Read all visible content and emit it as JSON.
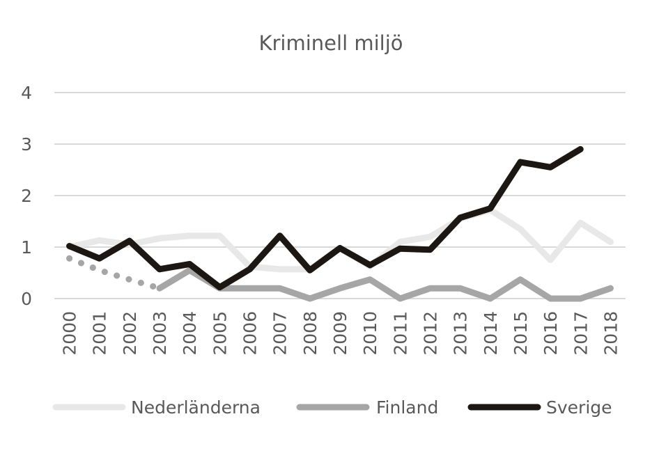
{
  "chart_data": {
    "type": "line",
    "title": "Kriminell miljö",
    "xlabel": "",
    "ylabel": "",
    "ylim": [
      0,
      4
    ],
    "yticks": [
      "0",
      "1",
      "2",
      "3",
      "4"
    ],
    "categories": [
      "2000",
      "2001",
      "2002",
      "2003",
      "2004",
      "2005",
      "2006",
      "2007",
      "2008",
      "2009",
      "2010",
      "2011",
      "2012",
      "2013",
      "2014",
      "2015",
      "2016",
      "2017",
      "2018"
    ],
    "grid": true,
    "legend_position": "bottom",
    "series": [
      {
        "name": "Nederländerna",
        "color": "#e8e8e8",
        "values": [
          1.0,
          1.13,
          1.05,
          1.17,
          1.22,
          1.22,
          0.62,
          0.57,
          0.57,
          0.98,
          0.63,
          1.1,
          1.2,
          1.55,
          1.72,
          1.35,
          0.75,
          1.47,
          1.1
        ]
      },
      {
        "name": "Finland",
        "color": "#a6a6a6",
        "values": [
          null,
          null,
          null,
          0.2,
          0.55,
          0.2,
          0.2,
          0.2,
          0.0,
          0.2,
          0.37,
          0.0,
          0.2,
          0.2,
          0.0,
          0.37,
          0.0,
          0.0,
          0.2
        ],
        "dotted_segment": {
          "from_category": "2000",
          "to_category": "2003",
          "values": [
            0.78,
            0.55,
            0.37,
            0.2
          ]
        }
      },
      {
        "name": "Sverige",
        "color": "#1c1712",
        "values": [
          1.02,
          0.78,
          1.12,
          0.57,
          0.67,
          0.22,
          0.57,
          1.22,
          0.55,
          0.98,
          0.65,
          0.97,
          0.95,
          1.57,
          1.75,
          2.65,
          2.55,
          2.9,
          null
        ]
      }
    ]
  }
}
